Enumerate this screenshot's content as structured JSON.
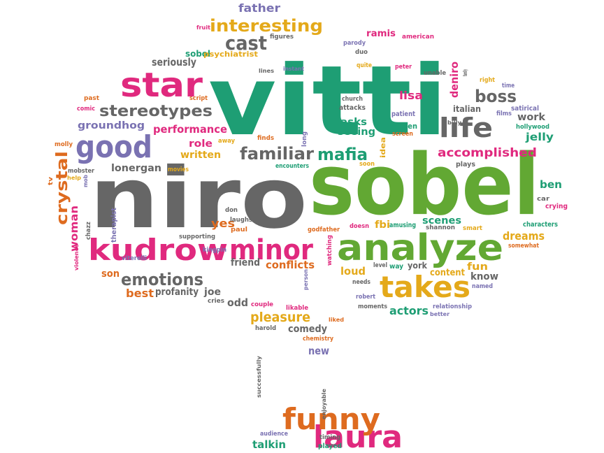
{
  "palette": {
    "green": "#1e9e74",
    "lime": "#62a833",
    "grey": "#666666",
    "magenta": "#e0297e",
    "purple": "#7a72b2",
    "orange": "#de6b1f",
    "gold": "#e4a91a"
  },
  "words": [
    {
      "text": "vitti",
      "color": "green"
    },
    {
      "text": "niro",
      "color": "grey"
    },
    {
      "text": "sobel",
      "color": "lime"
    },
    {
      "text": "analyze",
      "color": "lime"
    },
    {
      "text": "kudrow",
      "color": "magenta"
    },
    {
      "text": "minor",
      "color": "magenta"
    },
    {
      "text": "star",
      "color": "magenta"
    },
    {
      "text": "good",
      "color": "purple"
    },
    {
      "text": "takes",
      "color": "gold"
    },
    {
      "text": "life",
      "color": "grey"
    },
    {
      "text": "laura",
      "color": "magenta"
    },
    {
      "text": "funny",
      "color": "orange"
    },
    {
      "text": "interesting",
      "color": "gold"
    },
    {
      "text": "cast",
      "color": "grey"
    },
    {
      "text": "stereotypes",
      "color": "grey"
    },
    {
      "text": "emotions",
      "color": "grey"
    },
    {
      "text": "familiar",
      "color": "grey"
    },
    {
      "text": "mafia",
      "color": "green"
    },
    {
      "text": "boss",
      "color": "grey"
    },
    {
      "text": "crystal",
      "color": "orange"
    },
    {
      "text": "father",
      "color": "purple"
    },
    {
      "text": "seriously",
      "color": "grey"
    },
    {
      "text": "sobol",
      "color": "green"
    },
    {
      "text": "psychiatrist",
      "color": "gold"
    },
    {
      "text": "fruit",
      "color": "magenta"
    },
    {
      "text": "figures",
      "color": "grey"
    },
    {
      "text": "ramis",
      "color": "magenta"
    },
    {
      "text": "american",
      "color": "magenta"
    },
    {
      "text": "parody",
      "color": "purple"
    },
    {
      "text": "duo",
      "color": "grey"
    },
    {
      "text": "quite",
      "color": "gold"
    },
    {
      "text": "peter",
      "color": "magenta"
    },
    {
      "text": "unable",
      "color": "grey"
    },
    {
      "text": "family",
      "color": "grey"
    },
    {
      "text": "right",
      "color": "gold"
    },
    {
      "text": "time",
      "color": "purple"
    },
    {
      "text": "deniro",
      "color": "magenta"
    },
    {
      "text": "lines",
      "color": "grey"
    },
    {
      "text": "instant",
      "color": "purple"
    },
    {
      "text": "church",
      "color": "grey"
    },
    {
      "text": "lisa",
      "color": "magenta"
    },
    {
      "text": "attacks",
      "color": "grey"
    },
    {
      "text": "patient",
      "color": "purple"
    },
    {
      "text": "satirical",
      "color": "purple"
    },
    {
      "text": "italian",
      "color": "grey"
    },
    {
      "text": "films",
      "color": "purple"
    },
    {
      "text": "hollywood",
      "color": "green"
    },
    {
      "text": "billy",
      "color": "grey"
    },
    {
      "text": "work",
      "color": "grey"
    },
    {
      "text": "jelly",
      "color": "green"
    },
    {
      "text": "past",
      "color": "orange"
    },
    {
      "text": "comic",
      "color": "magenta"
    },
    {
      "text": "script",
      "color": "orange"
    },
    {
      "text": "groundhog",
      "color": "purple"
    },
    {
      "text": "performance",
      "color": "magenta"
    },
    {
      "text": "role",
      "color": "magenta"
    },
    {
      "text": "written",
      "color": "gold"
    },
    {
      "text": "away",
      "color": "gold"
    },
    {
      "text": "finds",
      "color": "orange"
    },
    {
      "text": "long",
      "color": "purple"
    },
    {
      "text": "asks",
      "color": "green"
    },
    {
      "text": "seeing",
      "color": "green"
    },
    {
      "text": "men",
      "color": "green"
    },
    {
      "text": "screen",
      "color": "orange"
    },
    {
      "text": "accomplished",
      "color": "magenta"
    },
    {
      "text": "plays",
      "color": "grey"
    },
    {
      "text": "idea",
      "color": "gold"
    },
    {
      "text": "soon",
      "color": "gold"
    },
    {
      "text": "encounters",
      "color": "green"
    },
    {
      "text": "lonergan",
      "color": "grey"
    },
    {
      "text": "movies",
      "color": "gold"
    },
    {
      "text": "molly",
      "color": "orange"
    },
    {
      "text": "tv",
      "color": "orange"
    },
    {
      "text": "mobster",
      "color": "grey"
    },
    {
      "text": "help",
      "color": "gold"
    },
    {
      "text": "mob",
      "color": "purple"
    },
    {
      "text": "ben",
      "color": "green"
    },
    {
      "text": "car",
      "color": "grey"
    },
    {
      "text": "crying",
      "color": "magenta"
    },
    {
      "text": "characters",
      "color": "green"
    },
    {
      "text": "woman",
      "color": "magenta"
    },
    {
      "text": "chazz",
      "color": "grey"
    },
    {
      "text": "violence",
      "color": "magenta"
    },
    {
      "text": "therapist",
      "color": "purple"
    },
    {
      "text": "viterelli",
      "color": "purple"
    },
    {
      "text": "yes",
      "color": "orange"
    },
    {
      "text": "supporting",
      "color": "grey"
    },
    {
      "text": "paul",
      "color": "orange"
    },
    {
      "text": "don",
      "color": "grey"
    },
    {
      "text": "laughs",
      "color": "grey"
    },
    {
      "text": "godfather",
      "color": "orange"
    },
    {
      "text": "doesn",
      "color": "magenta"
    },
    {
      "text": "fbi",
      "color": "gold"
    },
    {
      "text": "amusing",
      "color": "green"
    },
    {
      "text": "shannon",
      "color": "grey"
    },
    {
      "text": "smart",
      "color": "gold"
    },
    {
      "text": "scenes",
      "color": "green"
    },
    {
      "text": "dreams",
      "color": "gold"
    },
    {
      "text": "somewhat",
      "color": "orange"
    },
    {
      "text": "son",
      "color": "orange"
    },
    {
      "text": "kingpin",
      "color": "purple"
    },
    {
      "text": "friend",
      "color": "grey"
    },
    {
      "text": "conflicts",
      "color": "orange"
    },
    {
      "text": "watching",
      "color": "magenta"
    },
    {
      "text": "level",
      "color": "grey"
    },
    {
      "text": "way",
      "color": "green"
    },
    {
      "text": "york",
      "color": "grey"
    },
    {
      "text": "content",
      "color": "gold"
    },
    {
      "text": "fun",
      "color": "gold"
    },
    {
      "text": "loud",
      "color": "gold"
    },
    {
      "text": "know",
      "color": "grey"
    },
    {
      "text": "named",
      "color": "purple"
    },
    {
      "text": "needs",
      "color": "grey"
    },
    {
      "text": "best",
      "color": "orange"
    },
    {
      "text": "profanity",
      "color": "grey"
    },
    {
      "text": "joe",
      "color": "grey"
    },
    {
      "text": "person",
      "color": "purple"
    },
    {
      "text": "cries",
      "color": "grey"
    },
    {
      "text": "odd",
      "color": "grey"
    },
    {
      "text": "couple",
      "color": "magenta"
    },
    {
      "text": "robert",
      "color": "purple"
    },
    {
      "text": "moments",
      "color": "grey"
    },
    {
      "text": "actors",
      "color": "green"
    },
    {
      "text": "relationship",
      "color": "purple"
    },
    {
      "text": "better",
      "color": "purple"
    },
    {
      "text": "likable",
      "color": "magenta"
    },
    {
      "text": "pleasure",
      "color": "gold"
    },
    {
      "text": "liked",
      "color": "orange"
    },
    {
      "text": "harold",
      "color": "grey"
    },
    {
      "text": "comedy",
      "color": "grey"
    },
    {
      "text": "chemistry",
      "color": "orange"
    },
    {
      "text": "new",
      "color": "purple"
    },
    {
      "text": "successfully",
      "color": "grey"
    },
    {
      "text": "enjoyable",
      "color": "grey"
    },
    {
      "text": "audience",
      "color": "purple"
    },
    {
      "text": "timing",
      "color": "grey"
    },
    {
      "text": "talkin",
      "color": "green"
    },
    {
      "text": "played",
      "color": "green"
    }
  ]
}
